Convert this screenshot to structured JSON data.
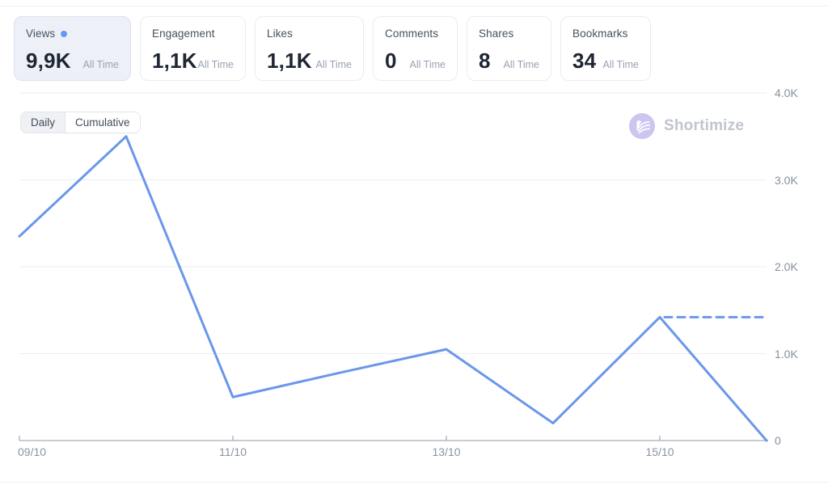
{
  "metrics": [
    {
      "label": "Views",
      "value": "9,9K",
      "period": "All Time",
      "selected": true
    },
    {
      "label": "Engagement",
      "value": "1,1K",
      "period": "All Time",
      "selected": false
    },
    {
      "label": "Likes",
      "value": "1,1K",
      "period": "All Time",
      "selected": false
    },
    {
      "label": "Comments",
      "value": "0",
      "period": "All Time",
      "selected": false
    },
    {
      "label": "Shares",
      "value": "8",
      "period": "All Time",
      "selected": false
    },
    {
      "label": "Bookmarks",
      "value": "34",
      "period": "All Time",
      "selected": false
    }
  ],
  "toggle": {
    "options": [
      "Daily",
      "Cumulative"
    ],
    "selected": "Daily"
  },
  "watermark": {
    "label": "Shortimize"
  },
  "colors": {
    "line": "#6b97ea",
    "accent_dot": "#5e9bf2",
    "grid": "#ebedf4",
    "axis": "#a6aebb",
    "tick_label": "#868f9e",
    "selected_card_bg": "#edf1f7",
    "watermark_icon": "#cdc4f0",
    "watermark_text": "#c1c5ce"
  },
  "chart_data": {
    "type": "line",
    "x": [
      "09/10",
      "10/10",
      "11/10",
      "12/10",
      "13/10",
      "14/10",
      "15/10",
      "16/10"
    ],
    "series": [
      {
        "name": "Views (Daily)",
        "values": [
          2350,
          3500,
          500,
          780,
          1050,
          200,
          1420,
          0
        ]
      }
    ],
    "dashed_segment": {
      "from": "15/10",
      "to": "16/10",
      "value": 1420,
      "style": "dashed-horizontal"
    },
    "ylim": [
      0,
      4000
    ],
    "yticks": [
      {
        "value": 0,
        "label": "0"
      },
      {
        "value": 1000,
        "label": "1.0K"
      },
      {
        "value": 2000,
        "label": "2.0K"
      },
      {
        "value": 3000,
        "label": "3.0K"
      },
      {
        "value": 4000,
        "label": "4.0K"
      }
    ],
    "xticks": [
      {
        "index": 0,
        "label": "09/10"
      },
      {
        "index": 2,
        "label": "11/10"
      },
      {
        "index": 4,
        "label": "13/10"
      },
      {
        "index": 6,
        "label": "15/10"
      }
    ],
    "grid": "horizontal",
    "legend": "none",
    "y_axis_side": "right"
  }
}
